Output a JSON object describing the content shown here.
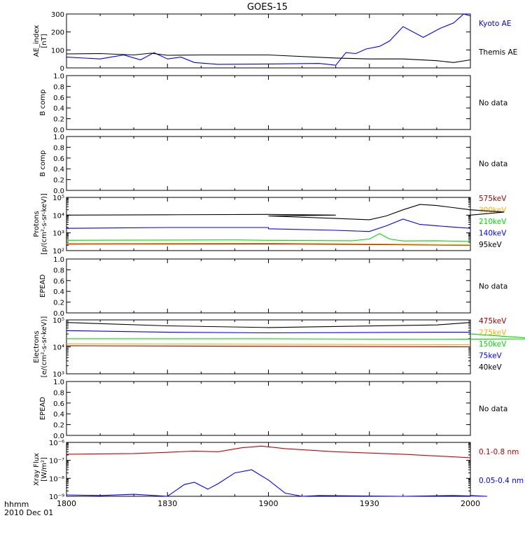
{
  "title": "GOES-15",
  "footer": {
    "line1": "hhmm",
    "line2": "2010 Dec 01"
  },
  "colors": {
    "black": "#000000",
    "blue": "#0000ff",
    "green": "#00dd00",
    "orange": "#ffaa00",
    "red": "#cc0000",
    "darkred": "#990000"
  },
  "chart_data": [
    {
      "type": "line",
      "title": "GOES-15",
      "ylabel": [
        "AE_index",
        "[nT]"
      ],
      "ylim": [
        0,
        300
      ],
      "yticks": [
        "0",
        "100",
        "200",
        "300"
      ],
      "xlim": [
        "1800",
        "2000"
      ],
      "series": [
        {
          "name": "Kyoto AE",
          "color": "#0000ff",
          "x": [
            "1800",
            "1810",
            "1817",
            "1822",
            "1826",
            "1830",
            "1834",
            "1838",
            "1845",
            "1900",
            "1915",
            "1920",
            "1923",
            "1926",
            "1929",
            "1933",
            "1936",
            "1940",
            "1946",
            "1951",
            "1955",
            "1958",
            "2000"
          ],
          "y": [
            60,
            50,
            72,
            45,
            85,
            50,
            60,
            30,
            20,
            22,
            25,
            15,
            85,
            80,
            105,
            120,
            150,
            230,
            170,
            220,
            250,
            300,
            290
          ]
        },
        {
          "name": "Themis AE",
          "color": "#000000",
          "x": [
            "1800",
            "1810",
            "1820",
            "1825",
            "1830",
            "1840",
            "1900",
            "1920",
            "1930",
            "1940",
            "1950",
            "1955",
            "2000"
          ],
          "y": [
            78,
            80,
            72,
            82,
            70,
            72,
            72,
            55,
            50,
            50,
            40,
            30,
            45
          ]
        }
      ]
    },
    {
      "type": "line",
      "ylabel": [
        "B comp"
      ],
      "ylim": [
        0,
        1
      ],
      "yticks": [
        "0.0",
        "0.2",
        "0.4",
        "0.6",
        "0.8",
        "1.0"
      ],
      "status": "No data",
      "series": []
    },
    {
      "type": "line",
      "ylabel": [
        "B comp"
      ],
      "ylim": [
        0,
        1
      ],
      "yticks": [
        "0.0",
        "0.2",
        "0.4",
        "0.6",
        "0.8",
        "1.0"
      ],
      "status": "No data",
      "series": []
    },
    {
      "type": "line",
      "ylabel": [
        "Protons",
        "[p/(cm²-s-sr-keV)]"
      ],
      "yscale": "log",
      "ylim": [
        100,
        100000
      ],
      "yticks": [
        "10²",
        "10³",
        "10⁴",
        "10⁵"
      ],
      "series": [
        {
          "name": "575keV",
          "color": "#990000",
          "x": [
            "1800",
            "1900",
            "1930",
            "2000"
          ],
          "y": [
            230,
            240,
            220,
            200
          ]
        },
        {
          "name": "300keV",
          "color": "#ffaa00",
          "x": [
            "1800",
            "1900",
            "1930",
            "2000"
          ],
          "y": [
            250,
            260,
            240,
            210
          ]
        },
        {
          "name": "210keV",
          "color": "#00dd00",
          "x": [
            "1800",
            "1850",
            "1900",
            "1925",
            "1930",
            "1933",
            "1936",
            "1940",
            "1950",
            "2000"
          ],
          "y": [
            380,
            400,
            380,
            360,
            450,
            900,
            450,
            350,
            360,
            330
          ]
        },
        {
          "name": "140keV",
          "color": "#0000ff",
          "x": [
            "1800",
            "1830",
            "1860",
            "1900",
            "1920",
            "1930",
            "1935",
            "1940",
            "1945",
            "1950",
            "1960",
            "2000"
          ],
          "y": [
            1800,
            2000,
            2000,
            1700,
            1400,
            1200,
            2500,
            6000,
            3000,
            2500,
            1800,
            1900
          ]
        },
        {
          "name": "95keV",
          "color": "#000000",
          "x": [
            "1800",
            "1830",
            "1860",
            "1880",
            "1900",
            "1920",
            "1930",
            "1935",
            "1940",
            "1945",
            "1950",
            "1960",
            "1970",
            "2000"
          ],
          "y": [
            10000,
            10500,
            11000,
            10000,
            9000,
            6500,
            5500,
            9000,
            20000,
            40000,
            35000,
            20000,
            15000,
            10000
          ]
        }
      ]
    },
    {
      "type": "line",
      "ylabel": [
        "EPEAD"
      ],
      "ylim": [
        0,
        1
      ],
      "yticks": [
        "0.0",
        "0.2",
        "0.4",
        "0.6",
        "0.8",
        "1.0"
      ],
      "status": "No data",
      "series": []
    },
    {
      "type": "line",
      "ylabel": [
        "Electrons",
        "[e/(cm²-s-sr-keV)]"
      ],
      "yscale": "log",
      "ylim": [
        1000,
        100000
      ],
      "yticks": [
        "10³",
        "10⁴",
        "10⁵"
      ],
      "series": [
        {
          "name": "475keV",
          "color": "#990000",
          "x": [
            "1800",
            "1900",
            "2000"
          ],
          "y": [
            11000,
            10500,
            10000
          ]
        },
        {
          "name": "275keV",
          "color": "#ffaa00",
          "x": [
            "1800",
            "1900",
            "2000"
          ],
          "y": [
            13000,
            12500,
            12000
          ]
        },
        {
          "name": "150keV",
          "color": "#00dd00",
          "x": [
            "1800",
            "1900",
            "1950",
            "1980",
            "2000"
          ],
          "y": [
            20000,
            20000,
            19000,
            20000,
            30000
          ]
        },
        {
          "name": "75keV",
          "color": "#0000ff",
          "x": [
            "1800",
            "1830",
            "1900",
            "1950",
            "2000"
          ],
          "y": [
            40000,
            35000,
            33000,
            35000,
            35000
          ]
        },
        {
          "name": "40keV",
          "color": "#000000",
          "x": [
            "1800",
            "1830",
            "1900",
            "1950",
            "2000"
          ],
          "y": [
            80000,
            60000,
            52000,
            65000,
            80000
          ]
        }
      ]
    },
    {
      "type": "line",
      "ylabel": [
        "EPEAD"
      ],
      "ylim": [
        0,
        1
      ],
      "yticks": [
        "0.0",
        "0.2",
        "0.4",
        "0.6",
        "0.8",
        "1.0"
      ],
      "status": "No data",
      "series": []
    },
    {
      "type": "line",
      "ylabel": [
        "Xray Flux",
        "[W/m²]"
      ],
      "yscale": "log",
      "ylim": [
        1e-09,
        1e-06
      ],
      "yticks": [
        "10⁻⁹",
        "10⁻⁸",
        "10⁻⁷",
        "10⁻⁶"
      ],
      "xticks": [
        "1800",
        "1830",
        "1900",
        "1930",
        "2000"
      ],
      "series": [
        {
          "name": "0.1-0.8 nm",
          "color": "#cc0000",
          "x": [
            "1800",
            "1820",
            "1830",
            "1838",
            "1845",
            "1852",
            "1858",
            "1905",
            "1920",
            "1940",
            "2000"
          ],
          "y": [
            2.2e-07,
            2.4e-07,
            2.8e-07,
            3.3e-07,
            3e-07,
            5e-07,
            6.2e-07,
            4.5e-07,
            3e-07,
            2.2e-07,
            1.4e-07
          ]
        },
        {
          "name": "0.05-0.4 nm",
          "color": "#0000ff",
          "x": [
            "1800",
            "1810",
            "1820",
            "1830",
            "1835",
            "1838",
            "1842",
            "1845",
            "1850",
            "1855",
            "1900",
            "1905",
            "1910",
            "1915",
            "1940",
            "1955",
            "1965",
            "2000"
          ],
          "y": [
            1.2e-09,
            1.1e-09,
            1.3e-09,
            1e-09,
            4.5e-09,
            6e-09,
            2.5e-09,
            5e-09,
            2e-08,
            3e-08,
            8e-09,
            1.5e-09,
            1e-09,
            1.1e-09,
            1e-09,
            1.1e-09,
            1e-09,
            1.1e-09
          ]
        }
      ]
    }
  ]
}
